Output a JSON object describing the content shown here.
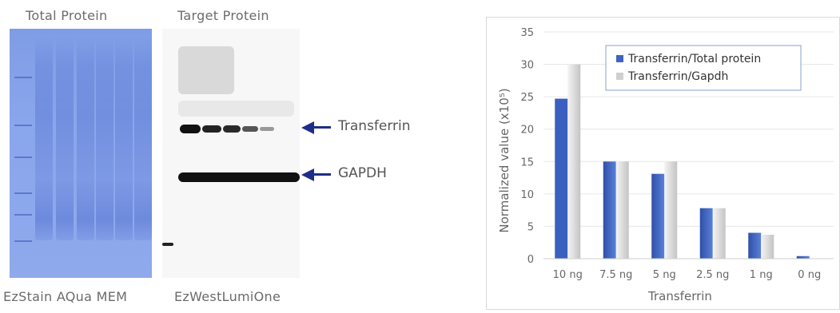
{
  "images": {
    "gel_title": "Total Protein",
    "blot_title": "Target Protein",
    "gel_caption": "EzStain AQua MEM",
    "blot_caption": "EzWestLumiOne",
    "band_labels": {
      "transferrin": "Transferrin",
      "gapdh": "GAPDH"
    }
  },
  "colors": {
    "gel": "#8aa6ec",
    "arrow": "#1e2d8a",
    "series_total_protein": "#3f64c0",
    "series_gapdh": "#d8d8d8"
  },
  "chart_data": {
    "type": "bar",
    "categories": [
      "10 ng",
      "7.5 ng",
      "5 ng",
      "2.5 ng",
      "1 ng",
      "0 ng"
    ],
    "series": [
      {
        "name": "Transferrin/Total protein",
        "values": [
          24.7,
          15.0,
          13.1,
          7.8,
          4.0,
          0.4
        ]
      },
      {
        "name": "Transferrin/Gapdh",
        "values": [
          30.0,
          15.0,
          15.0,
          7.8,
          3.7,
          0.0
        ]
      }
    ],
    "xlabel": "Transferrin",
    "ylabel": "Normalized value (x10⁵)",
    "ylim": [
      0,
      35
    ],
    "yticks": [
      0,
      5,
      10,
      15,
      20,
      25,
      30,
      35
    ],
    "grid": true,
    "legend": "top-right"
  }
}
